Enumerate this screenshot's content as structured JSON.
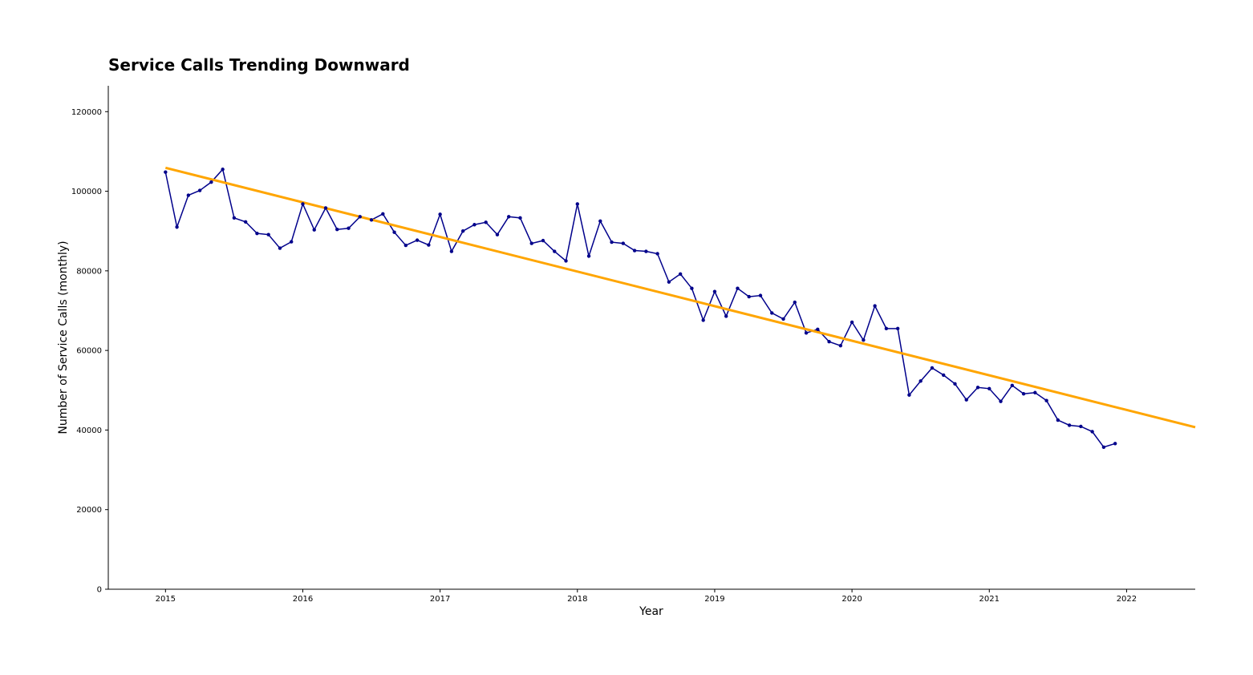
{
  "chart_data": {
    "type": "line",
    "title": "Service Calls Trending Downward",
    "xlabel": "Year",
    "ylabel": "Number of Service Calls (monthly)",
    "x_ticks": [
      "2015",
      "2016",
      "2017",
      "2018",
      "2019",
      "2020",
      "2021",
      "2022"
    ],
    "y_ticks": [
      "0",
      "20000",
      "40000",
      "60000",
      "80000",
      "100000",
      "120000"
    ],
    "xlim": [
      "2014-08",
      "2022-07"
    ],
    "ylim": [
      0,
      126500
    ],
    "grid": false,
    "legend": "none",
    "x": [
      "2015-01",
      "2015-02",
      "2015-03",
      "2015-04",
      "2015-05",
      "2015-06",
      "2015-07",
      "2015-08",
      "2015-09",
      "2015-10",
      "2015-11",
      "2015-12",
      "2016-01",
      "2016-02",
      "2016-03",
      "2016-04",
      "2016-05",
      "2016-06",
      "2016-07",
      "2016-08",
      "2016-09",
      "2016-10",
      "2016-11",
      "2016-12",
      "2017-01",
      "2017-02",
      "2017-03",
      "2017-04",
      "2017-05",
      "2017-06",
      "2017-07",
      "2017-08",
      "2017-09",
      "2017-10",
      "2017-11",
      "2017-12",
      "2018-01",
      "2018-02",
      "2018-03",
      "2018-04",
      "2018-05",
      "2018-06",
      "2018-07",
      "2018-08",
      "2018-09",
      "2018-10",
      "2018-11",
      "2018-12",
      "2019-01",
      "2019-02",
      "2019-03",
      "2019-04",
      "2019-05",
      "2019-06",
      "2019-07",
      "2019-08",
      "2019-09",
      "2019-10",
      "2019-11",
      "2019-12",
      "2020-01",
      "2020-02",
      "2020-03",
      "2020-04",
      "2020-05",
      "2020-06",
      "2020-07",
      "2020-08",
      "2020-09",
      "2020-10",
      "2020-11",
      "2020-12",
      "2021-01",
      "2021-02",
      "2021-03",
      "2021-04",
      "2021-05",
      "2021-06",
      "2021-07",
      "2021-08",
      "2021-09",
      "2021-10",
      "2021-11",
      "2021-12"
    ],
    "series": [
      {
        "color": "#00008b",
        "marker": "point",
        "values": [
          104800,
          91000,
          99000,
          100200,
          102300,
          105500,
          93300,
          92300,
          89400,
          89100,
          85700,
          87300,
          96800,
          90300,
          95800,
          90400,
          90700,
          93600,
          92800,
          94300,
          89700,
          86400,
          87700,
          86500,
          94200,
          84900,
          90000,
          91600,
          92200,
          89100,
          93600,
          93300,
          86900,
          87600,
          84900,
          82500,
          96800,
          83700,
          92500,
          87200,
          86900,
          85100,
          84900,
          84300,
          77200,
          79200,
          75600,
          67600,
          74800,
          68600,
          75600,
          73500,
          73800,
          69400,
          67900,
          72100,
          64400,
          65300,
          62200,
          61200,
          67100,
          62600,
          71200,
          65500,
          65500,
          48800,
          52300,
          55600,
          53800,
          51600,
          47600,
          50700,
          50400,
          47200,
          51200,
          49100,
          49400,
          47400,
          42500,
          41200,
          40900,
          39600,
          35700,
          36600
        ]
      },
      {
        "color": "#ffa500",
        "kind": "trend",
        "x": [
          "2015-01",
          "2022-07"
        ],
        "values": [
          105900,
          40700
        ]
      }
    ]
  }
}
